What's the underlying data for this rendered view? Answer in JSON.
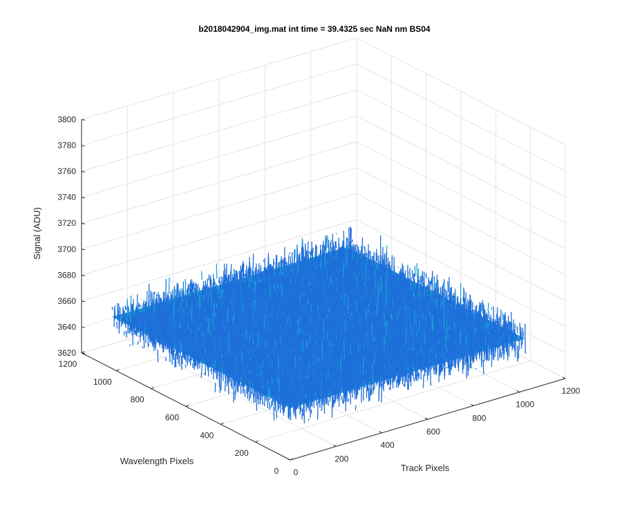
{
  "chart_data": {
    "type": "surface3d",
    "title": "b2018042904_img.mat int time = 39.4325 sec   NaN nm BS04",
    "xlabel": "Track Pixels",
    "ylabel": "Wavelength Pixels",
    "zlabel": "Signal (ADU)",
    "xlim": [
      0,
      1200
    ],
    "ylim": [
      0,
      1200
    ],
    "zlim": [
      3620,
      3800
    ],
    "x_ticks": [
      0,
      200,
      400,
      600,
      800,
      1000,
      1200
    ],
    "y_ticks": [
      0,
      200,
      400,
      600,
      800,
      1000,
      1200
    ],
    "z_ticks": [
      3620,
      3640,
      3660,
      3680,
      3700,
      3720,
      3740,
      3760,
      3780,
      3800
    ],
    "surface": {
      "x_range": [
        0,
        1024
      ],
      "y_range": [
        0,
        1024
      ],
      "mean_signal": 3660,
      "min_signal": 3625,
      "max_signal": 3725,
      "description_colormap": "parula"
    },
    "grid": true,
    "colors": {
      "surface_low": "#1e6fd9",
      "surface_mid": "#1a9fd6",
      "surface_high": "#2bb3a0"
    }
  }
}
